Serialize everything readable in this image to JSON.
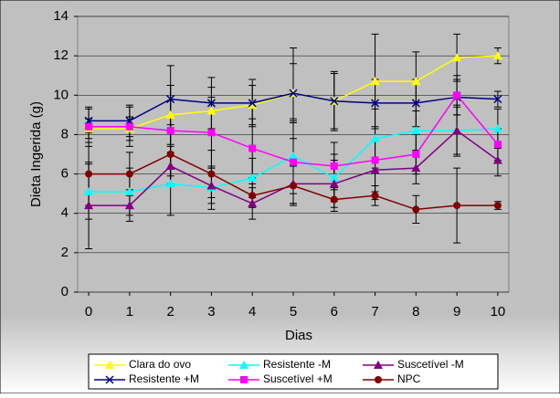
{
  "chart_data": {
    "type": "line",
    "x_label": "Dias",
    "y_label": "Dieta Ingerida (g)",
    "x": [
      0,
      1,
      2,
      3,
      4,
      5,
      6,
      7,
      8,
      9,
      10
    ],
    "xlim": [
      -0.27,
      10.27
    ],
    "xticks": [
      0,
      1,
      2,
      3,
      4,
      5,
      6,
      7,
      8,
      9,
      10
    ],
    "ylim": [
      0,
      14
    ],
    "yticks": [
      0,
      2,
      4,
      6,
      8,
      10,
      12,
      14
    ],
    "grid": true,
    "series": [
      {
        "name": "Clara do ovo",
        "color": "#ffff00",
        "marker": "triangle",
        "values": [
          8.3,
          8.3,
          9.0,
          9.2,
          9.5,
          10.1,
          9.7,
          10.7,
          10.7,
          11.9,
          12.0
        ],
        "errors": [
          0.5,
          0.6,
          1.5,
          1.2,
          1.0,
          1.5,
          1.5,
          2.4,
          1.5,
          1.2,
          0.4
        ]
      },
      {
        "name": "Resistente -M",
        "color": "#00ffff",
        "marker": "triangle",
        "values": [
          5.1,
          5.1,
          5.5,
          5.3,
          5.8,
          6.9,
          5.8,
          7.8,
          8.2,
          8.2,
          8.3
        ],
        "errors": [
          1.4,
          1.2,
          1.6,
          1.1,
          1.0,
          1.9,
          1.2,
          1.5,
          1.0,
          1.2,
          1.0
        ]
      },
      {
        "name": "Suscetível -M",
        "color": "#800080",
        "marker": "triangle",
        "values": [
          4.4,
          4.4,
          6.4,
          5.4,
          4.5,
          5.5,
          5.5,
          6.2,
          6.3,
          8.2,
          6.7
        ],
        "errors": [
          2.2,
          0.8,
          1.0,
          0.9,
          0.8,
          1.0,
          1.2,
          1.5,
          0.8,
          1.3,
          0.8
        ]
      },
      {
        "name": "Resistente +M",
        "color": "#000080",
        "marker": "x",
        "values": [
          8.7,
          8.7,
          9.8,
          9.6,
          9.6,
          10.1,
          9.7,
          9.6,
          9.6,
          9.9,
          9.8
        ],
        "errors": [
          0.6,
          0.8,
          1.7,
          1.3,
          1.2,
          2.3,
          1.4,
          1.2,
          1.2,
          0.9,
          0.4
        ]
      },
      {
        "name": "Suscetível +M",
        "color": "#ff00ff",
        "marker": "square",
        "values": [
          8.4,
          8.4,
          8.2,
          8.1,
          7.3,
          6.6,
          6.4,
          6.7,
          7.0,
          10.0,
          7.5
        ],
        "errors": [
          1.0,
          1.0,
          2.3,
          1.8,
          1.5,
          2.1,
          1.2,
          1.6,
          1.0,
          1.0,
          0.8
        ]
      },
      {
        "name": "NPC",
        "color": "#800000",
        "marker": "circle",
        "values": [
          6.0,
          6.0,
          7.0,
          6.0,
          4.9,
          5.4,
          4.7,
          4.9,
          4.2,
          4.4,
          4.4
        ],
        "errors": [
          1.6,
          1.1,
          1.5,
          1.2,
          0.6,
          1.0,
          0.6,
          0.5,
          0.7,
          1.9,
          0.2
        ]
      }
    ]
  }
}
